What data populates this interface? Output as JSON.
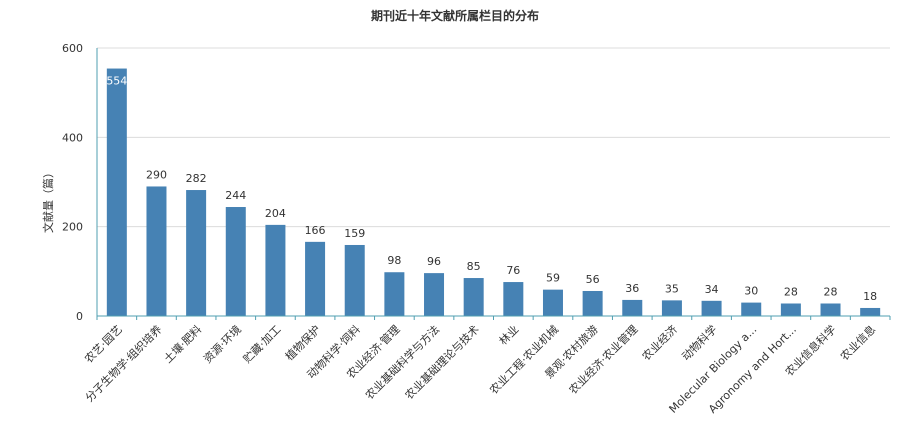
{
  "chart_data": {
    "type": "bar",
    "title": "期刊近十年文献所属栏目的分布",
    "ylabel": "文献量（篇）",
    "xlabel": "",
    "ylim": [
      0,
      600
    ],
    "yticks": [
      0,
      200,
      400,
      600
    ],
    "grid": true,
    "bar_color": "#4682B4",
    "categories": [
      "农艺·园艺",
      "分子生物学·组织培养",
      "土壤·肥料",
      "资源·环境",
      "贮藏·加工",
      "植物保护",
      "动物科学·饲料",
      "农业经济·管理",
      "农业基础科学与方法",
      "农业基础理论与技术",
      "林业",
      "农业工程·农业机械",
      "景观·农村旅游",
      "农业经济·农业管理",
      "农业经济",
      "动物科学",
      "Molecular Biology a...",
      "Agronomy and Hort...",
      "农业信息科学",
      "农业信息"
    ],
    "values": [
      554,
      290,
      282,
      244,
      204,
      166,
      159,
      98,
      96,
      85,
      76,
      59,
      56,
      36,
      35,
      34,
      30,
      28,
      28,
      18
    ]
  }
}
